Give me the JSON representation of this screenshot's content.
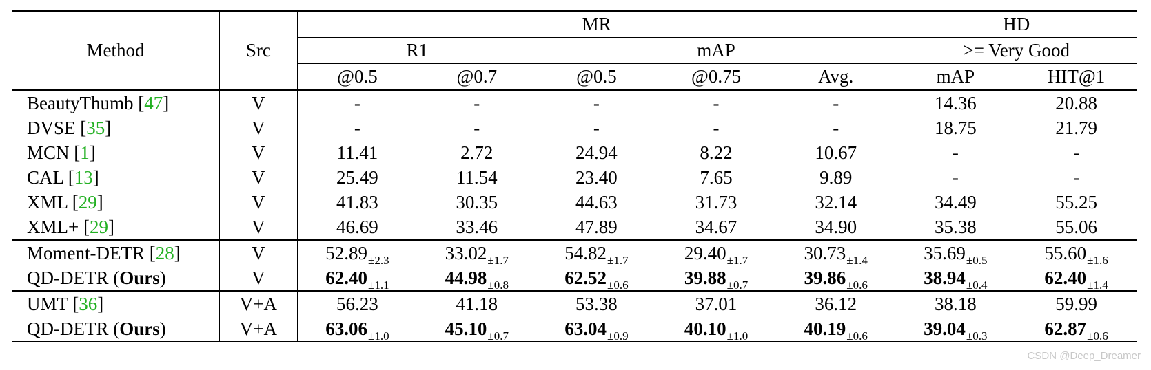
{
  "header": {
    "method": "Method",
    "src": "Src",
    "mr": "MR",
    "hd": "HD",
    "r1": "R1",
    "map": "mAP",
    "very_good": ">= Very Good",
    "sub_cols": [
      "@0.5",
      "@0.7",
      "@0.5",
      "@0.75",
      "Avg.",
      "mAP",
      "HIT@1"
    ]
  },
  "rows": [
    {
      "name": "BeautyThumb",
      "ref": "47",
      "src": "V",
      "vals": [
        "-",
        "-",
        "-",
        "-",
        "-",
        "14.36",
        "20.88"
      ]
    },
    {
      "name": "DVSE",
      "ref": "35",
      "src": "V",
      "vals": [
        "-",
        "-",
        "-",
        "-",
        "-",
        "18.75",
        "21.79"
      ]
    },
    {
      "name": "MCN",
      "ref": "1",
      "src": "V",
      "vals": [
        "11.41",
        "2.72",
        "24.94",
        "8.22",
        "10.67",
        "-",
        "-"
      ]
    },
    {
      "name": "CAL",
      "ref": "13",
      "src": "V",
      "vals": [
        "25.49",
        "11.54",
        "23.40",
        "7.65",
        "9.89",
        "-",
        "-"
      ]
    },
    {
      "name": "XML",
      "ref": "29",
      "src": "V",
      "vals": [
        "41.83",
        "30.35",
        "44.63",
        "31.73",
        "32.14",
        "34.49",
        "55.25"
      ]
    },
    {
      "name": "XML+",
      "ref": "29",
      "src": "V",
      "vals": [
        "46.69",
        "33.46",
        "47.89",
        "34.67",
        "34.90",
        "35.38",
        "55.06"
      ]
    },
    {
      "name": "Moment-DETR",
      "ref": "28",
      "src": "V",
      "vals": [
        "52.89",
        "33.02",
        "54.82",
        "29.40",
        "30.73",
        "35.69",
        "55.60"
      ],
      "pm": [
        "±2.3",
        "±1.7",
        "±1.7",
        "±1.7",
        "±1.4",
        "±0.5",
        "±1.6"
      ]
    },
    {
      "name": "QD-DETR (",
      "ours": "Ours",
      "close": ")",
      "src": "V",
      "bold": true,
      "vals": [
        "62.40",
        "44.98",
        "62.52",
        "39.88",
        "39.86",
        "38.94",
        "62.40"
      ],
      "pm": [
        "±1.1",
        "±0.8",
        "±0.6",
        "±0.7",
        "±0.6",
        "±0.4",
        "±1.4"
      ]
    },
    {
      "name": "UMT",
      "ref": "36",
      "src": "V+A",
      "vals": [
        "56.23",
        "41.18",
        "53.38",
        "37.01",
        "36.12",
        "38.18",
        "59.99"
      ]
    },
    {
      "name": "QD-DETR (",
      "ours": "Ours",
      "close": ")",
      "src": "V+A",
      "bold": true,
      "vals": [
        "63.06",
        "45.10",
        "63.04",
        "40.10",
        "40.19",
        "39.04",
        "62.87"
      ],
      "pm": [
        "±1.0",
        "±0.7",
        "±0.9",
        "±1.0",
        "±0.6",
        "±0.3",
        "±0.6"
      ]
    }
  ],
  "watermark": "CSDN @Deep_Dreamer"
}
